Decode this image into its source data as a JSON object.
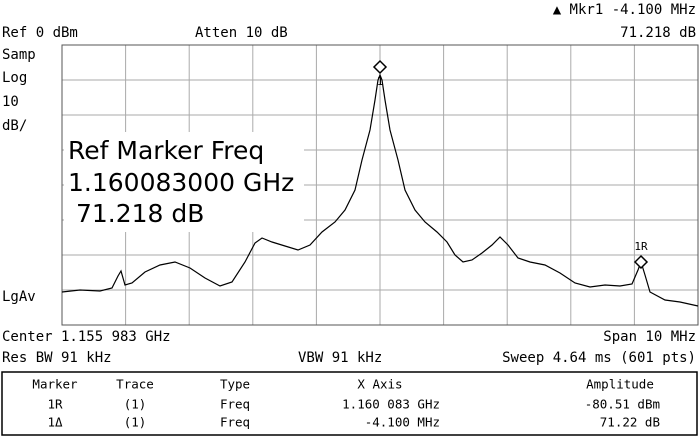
{
  "status": {
    "marker_readout": "▲ Mkr1  -4.100 MHz",
    "ref_level": "Ref 0 dBm",
    "attenuation": "Atten 10 dB",
    "marker_amplitude": "71.218 dB"
  },
  "side_labels": [
    "Samp",
    "Log",
    "10",
    "dB/",
    "LgAv"
  ],
  "overlay": [
    "Ref Marker Freq",
    "1.160083000 GHz",
    " 71.218 dB"
  ],
  "markers": [
    "1",
    "1R"
  ],
  "footer": {
    "center": "Center 1.155 983 GHz",
    "span": "Span 10 MHz",
    "rbw": "Res BW 91 kHz",
    "vbw": "VBW 91 kHz",
    "sweep": "Sweep 4.64 ms (601 pts)"
  },
  "table": {
    "header": [
      "Marker",
      "Trace",
      "Type",
      "X Axis",
      "Amplitude"
    ],
    "rows": [
      [
        "1R",
        "(1)",
        "Freq",
        "1.160 083 GHz",
        "-80.51 dBm"
      ],
      [
        "1Δ",
        "(1)",
        "Freq",
        "-4.100 MHz",
        "71.22 dB"
      ]
    ]
  }
}
